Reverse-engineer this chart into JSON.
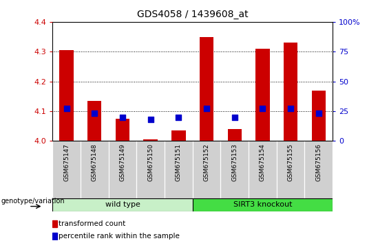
{
  "title": "GDS4058 / 1439608_at",
  "samples": [
    "GSM675147",
    "GSM675148",
    "GSM675149",
    "GSM675150",
    "GSM675151",
    "GSM675152",
    "GSM675153",
    "GSM675154",
    "GSM675155",
    "GSM675156"
  ],
  "transformed_count": [
    4.305,
    4.135,
    4.075,
    4.005,
    4.035,
    4.35,
    4.04,
    4.31,
    4.33,
    4.17
  ],
  "percentile_rank": [
    27,
    23,
    20,
    18,
    20,
    27,
    20,
    27,
    27,
    23
  ],
  "ylim_left": [
    4.0,
    4.4
  ],
  "ylim_right": [
    0,
    100
  ],
  "yticks_left": [
    4.0,
    4.1,
    4.2,
    4.3,
    4.4
  ],
  "yticks_right": [
    0,
    25,
    50,
    75,
    100
  ],
  "group_label": "genotype/variation",
  "groups": [
    {
      "start": 0,
      "end": 4,
      "label": "wild type",
      "color": "#c8f0c8"
    },
    {
      "start": 5,
      "end": 9,
      "label": "SIRT3 knockout",
      "color": "#44dd44"
    }
  ],
  "bar_color": "#cc0000",
  "dot_color": "#0000cc",
  "bar_width": 0.5,
  "dot_size": 35,
  "plot_bg_color": "#ffffff",
  "grid_color": "#000000",
  "left_axis_color": "#cc0000",
  "right_axis_color": "#0000cc",
  "sample_box_color": "#d0d0d0",
  "legend_items": [
    "transformed count",
    "percentile rank within the sample"
  ]
}
